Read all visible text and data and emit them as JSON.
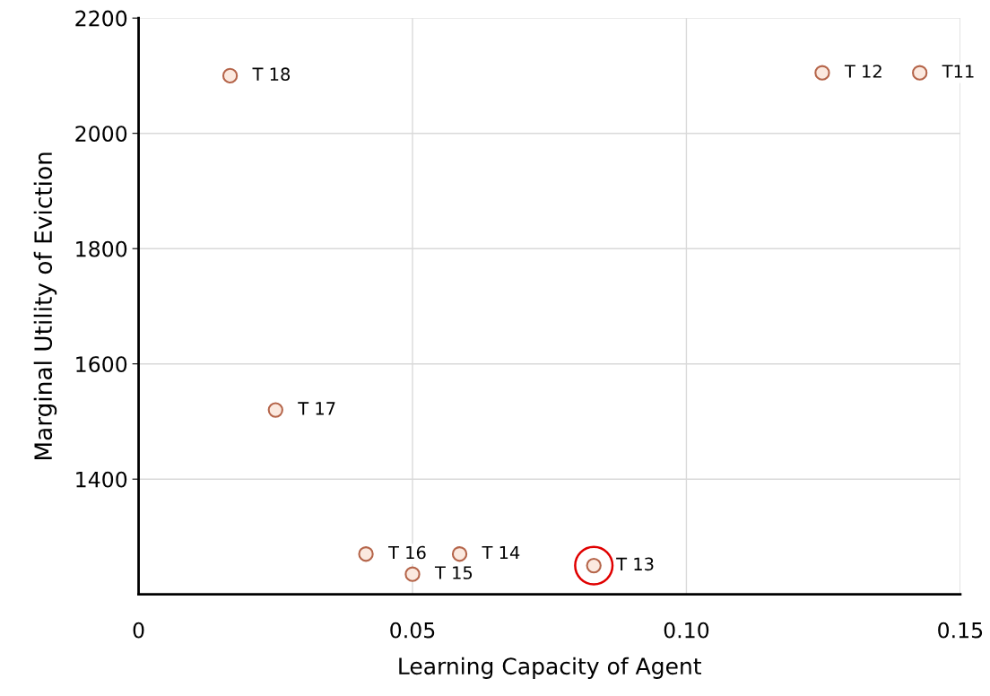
{
  "chart_data": {
    "type": "scatter",
    "xlabel": "Learning Capacity of Agent",
    "ylabel": "Marginal Utility of Eviction",
    "x": [
      0.0167,
      0.025,
      0.0415,
      0.05,
      0.0586,
      0.0831,
      0.1248,
      0.1426
    ],
    "series": [
      {
        "color": "#b5654a",
        "values": [
          2100,
          1520,
          1270,
          1235,
          1270,
          1250,
          2105,
          2105
        ],
        "marker": "circle"
      },
      {
        "color": "#e00000",
        "x": [
          0.0831
        ],
        "values": [
          1250
        ],
        "marker": "circle"
      }
    ],
    "annotations": [
      {
        "text": "T 18",
        "x": 0.0167,
        "y": 2100
      },
      {
        "text": "T 17",
        "x": 0.025,
        "y": 1520
      },
      {
        "text": "T 16",
        "x": 0.0415,
        "y": 1270
      },
      {
        "text": "T 15",
        "x": 0.05,
        "y": 1235
      },
      {
        "text": "T 14",
        "x": 0.0586,
        "y": 1270
      },
      {
        "text": "T 13",
        "x": 0.0831,
        "y": 1250
      },
      {
        "text": "T 12",
        "x": 0.1248,
        "y": 2105
      },
      {
        "text": "T11",
        "x": 0.1426,
        "y": 2105
      }
    ],
    "xlim": [
      0,
      0.15
    ],
    "xticks": [
      0,
      0.05,
      {
        "value": 0.1,
        "label": "0.10"
      },
      0.15
    ],
    "ylim": [
      1200,
      2200
    ],
    "yticks": [
      1400,
      1600,
      1800,
      2000,
      2200
    ],
    "grid": true
  }
}
